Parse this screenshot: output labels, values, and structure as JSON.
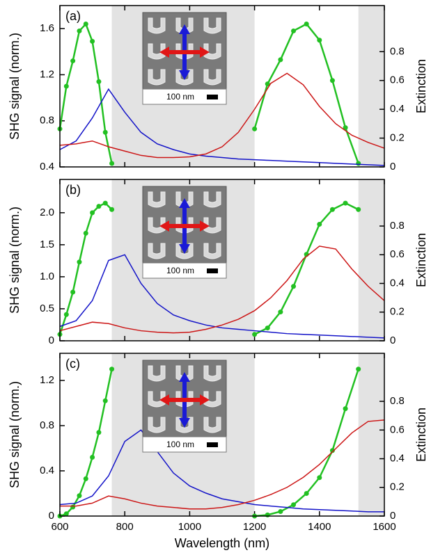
{
  "chart_data": [
    {
      "type": "line",
      "panel_label": "(a)",
      "ylabel": "SHG signal (norm.)",
      "y2label": "Extinction",
      "inset_label": "100 nm",
      "xlim": [
        600,
        1600
      ],
      "xticks": [
        600,
        800,
        1000,
        1200,
        1400,
        1600
      ],
      "ylim": [
        0.4,
        1.8
      ],
      "yticks": [
        0.4,
        0.8,
        1.2,
        1.6
      ],
      "y2lim": [
        0,
        1.12
      ],
      "y2ticks": [
        0,
        0.2,
        0.4,
        0.6,
        0.8
      ],
      "shaded_regions": [
        [
          760,
          1200
        ],
        [
          1520,
          1600
        ]
      ],
      "shade_color": "#e3e3e3",
      "series": [
        {
          "color": "#22c022",
          "markers": true,
          "x": [
            600,
            620,
            640,
            660,
            680,
            700,
            720,
            740,
            760
          ],
          "values": [
            0.73,
            1.1,
            1.32,
            1.58,
            1.64,
            1.49,
            1.14,
            0.7,
            0.43
          ]
        },
        {
          "color": "#22c022",
          "markers": true,
          "x": [
            1200,
            1240,
            1280,
            1320,
            1360,
            1400,
            1440,
            1480,
            1520
          ],
          "values": [
            0.73,
            1.12,
            1.33,
            1.58,
            1.64,
            1.5,
            1.15,
            0.74,
            0.43
          ]
        },
        {
          "color": "#1212c8",
          "axis": "y2",
          "x": [
            600,
            650,
            700,
            750,
            800,
            850,
            900,
            950,
            1000,
            1050,
            1100,
            1150,
            1200,
            1250,
            1300,
            1350,
            1400,
            1450,
            1500,
            1550,
            1600
          ],
          "values": [
            0.12,
            0.18,
            0.34,
            0.54,
            0.38,
            0.24,
            0.16,
            0.12,
            0.09,
            0.075,
            0.065,
            0.055,
            0.05,
            0.045,
            0.04,
            0.035,
            0.03,
            0.025,
            0.02,
            0.015,
            0.01
          ]
        },
        {
          "color": "#cc1515",
          "axis": "y2",
          "x": [
            600,
            650,
            700,
            750,
            800,
            850,
            900,
            950,
            1000,
            1050,
            1100,
            1150,
            1200,
            1250,
            1300,
            1350,
            1400,
            1450,
            1500,
            1550,
            1600
          ],
          "values": [
            0.15,
            0.16,
            0.18,
            0.14,
            0.11,
            0.08,
            0.065,
            0.065,
            0.07,
            0.09,
            0.14,
            0.24,
            0.4,
            0.58,
            0.65,
            0.57,
            0.42,
            0.3,
            0.22,
            0.17,
            0.13
          ]
        }
      ]
    },
    {
      "type": "line",
      "panel_label": "(b)",
      "ylabel": "SHG signal (norm.)",
      "y2label": "Extinction",
      "inset_label": "100 nm",
      "xlim": [
        600,
        1600
      ],
      "xticks": [
        600,
        800,
        1000,
        1200,
        1400,
        1600
      ],
      "ylim": [
        0,
        2.52
      ],
      "yticks": [
        0,
        0.5,
        {
          "value": 1,
          "label": "1.0"
        },
        1.5,
        {
          "value": 2,
          "label": "2.0"
        }
      ],
      "y2lim": [
        0,
        1.125
      ],
      "y2ticks": [
        0,
        0.2,
        0.4,
        0.6,
        0.8
      ],
      "shaded_regions": [
        [
          760,
          1200
        ],
        [
          1520,
          1600
        ]
      ],
      "shade_color": "#e3e3e3",
      "series": [
        {
          "color": "#22c022",
          "markers": true,
          "x": [
            600,
            620,
            640,
            660,
            680,
            700,
            720,
            740,
            760
          ],
          "values": [
            0.1,
            0.41,
            0.76,
            1.23,
            1.68,
            2.0,
            2.1,
            2.15,
            2.05
          ]
        },
        {
          "color": "#22c022",
          "markers": true,
          "x": [
            1200,
            1240,
            1280,
            1320,
            1360,
            1400,
            1440,
            1480,
            1520
          ],
          "values": [
            0.1,
            0.2,
            0.45,
            0.85,
            1.35,
            1.82,
            2.05,
            2.15,
            2.05
          ]
        },
        {
          "color": "#1212c8",
          "axis": "y2",
          "x": [
            600,
            650,
            700,
            750,
            800,
            850,
            900,
            950,
            1000,
            1050,
            1100,
            1150,
            1200,
            1250,
            1300,
            1350,
            1400,
            1450,
            1500,
            1550,
            1600
          ],
          "values": [
            0.1,
            0.14,
            0.28,
            0.56,
            0.6,
            0.4,
            0.26,
            0.18,
            0.14,
            0.11,
            0.09,
            0.08,
            0.07,
            0.06,
            0.05,
            0.045,
            0.04,
            0.035,
            0.03,
            0.025,
            0.02
          ]
        },
        {
          "color": "#cc1515",
          "axis": "y2",
          "x": [
            600,
            650,
            700,
            750,
            800,
            850,
            900,
            950,
            1000,
            1050,
            1100,
            1150,
            1200,
            1250,
            1300,
            1350,
            1400,
            1450,
            1500,
            1550,
            1600
          ],
          "values": [
            0.07,
            0.1,
            0.13,
            0.12,
            0.09,
            0.07,
            0.06,
            0.055,
            0.06,
            0.08,
            0.11,
            0.15,
            0.21,
            0.3,
            0.42,
            0.57,
            0.66,
            0.64,
            0.5,
            0.38,
            0.28
          ]
        }
      ]
    },
    {
      "type": "line",
      "panel_label": "(c)",
      "ylabel": "SHG signal (norm.)",
      "y2label": "Extinction",
      "inset_label": "100 nm",
      "xlabel": "Wavelength (nm)",
      "xlim": [
        600,
        1600
      ],
      "xticks": [
        600,
        800,
        1000,
        1200,
        1400,
        1600
      ],
      "ylim": [
        0,
        1.44
      ],
      "yticks": [
        0,
        0.4,
        0.8,
        1.2
      ],
      "y2lim": [
        0,
        1.135
      ],
      "y2ticks": [
        0,
        0.2,
        0.4,
        0.6,
        0.8
      ],
      "shaded_regions": [
        [
          760,
          1200
        ],
        [
          1520,
          1600
        ]
      ],
      "shade_color": "#e3e3e3",
      "series": [
        {
          "color": "#22c022",
          "markers": true,
          "x": [
            600,
            620,
            640,
            660,
            680,
            700,
            720,
            740,
            760
          ],
          "values": [
            0,
            0.02,
            0.08,
            0.18,
            0.33,
            0.52,
            0.74,
            1.02,
            1.3
          ]
        },
        {
          "color": "#22c022",
          "markers": true,
          "x": [
            1200,
            1240,
            1280,
            1320,
            1360,
            1400,
            1440,
            1480,
            1520
          ],
          "values": [
            0,
            0.01,
            0.04,
            0.1,
            0.2,
            0.34,
            0.58,
            0.95,
            1.3
          ]
        },
        {
          "color": "#1212c8",
          "axis": "y2",
          "x": [
            600,
            650,
            700,
            750,
            800,
            850,
            900,
            950,
            1000,
            1050,
            1100,
            1150,
            1200,
            1250,
            1300,
            1350,
            1400,
            1450,
            1500,
            1550,
            1600
          ],
          "values": [
            0.08,
            0.09,
            0.14,
            0.28,
            0.52,
            0.6,
            0.45,
            0.3,
            0.21,
            0.16,
            0.12,
            0.1,
            0.08,
            0.07,
            0.06,
            0.05,
            0.045,
            0.04,
            0.035,
            0.03,
            0.03
          ]
        },
        {
          "color": "#cc1515",
          "axis": "y2",
          "x": [
            600,
            650,
            700,
            750,
            800,
            850,
            900,
            950,
            1000,
            1050,
            1100,
            1150,
            1200,
            1250,
            1300,
            1350,
            1400,
            1450,
            1500,
            1550,
            1600
          ],
          "values": [
            0.07,
            0.07,
            0.09,
            0.14,
            0.12,
            0.09,
            0.07,
            0.06,
            0.05,
            0.05,
            0.06,
            0.08,
            0.11,
            0.15,
            0.2,
            0.27,
            0.36,
            0.47,
            0.58,
            0.66,
            0.67
          ]
        }
      ]
    }
  ]
}
